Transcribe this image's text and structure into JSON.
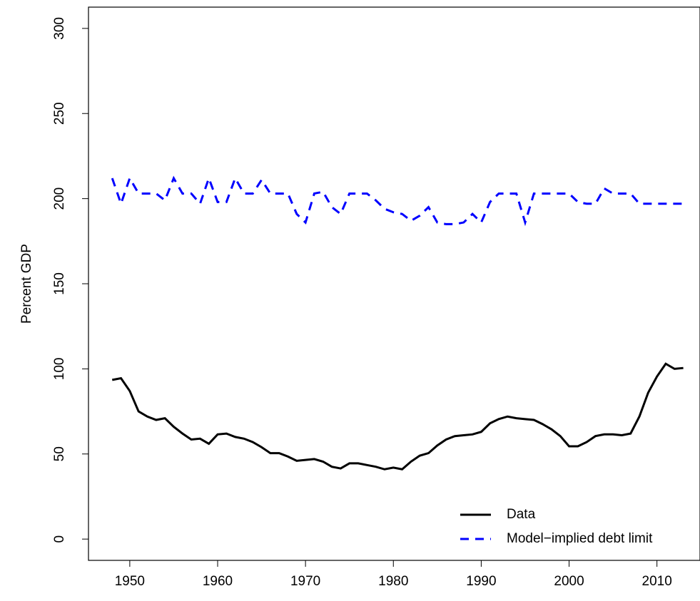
{
  "chart_data": {
    "type": "line",
    "y_label": "Percent GDP",
    "x": [
      1948,
      1949,
      1950,
      1951,
      1952,
      1953,
      1954,
      1955,
      1956,
      1957,
      1958,
      1959,
      1960,
      1961,
      1962,
      1963,
      1964,
      1965,
      1966,
      1967,
      1968,
      1969,
      1970,
      1971,
      1972,
      1973,
      1974,
      1975,
      1976,
      1977,
      1978,
      1979,
      1980,
      1981,
      1982,
      1983,
      1984,
      1985,
      1986,
      1987,
      1988,
      1989,
      1990,
      1991,
      1992,
      1993,
      1994,
      1995,
      1996,
      1997,
      1998,
      1999,
      2000,
      2001,
      2002,
      2003,
      2004,
      2005,
      2006,
      2007,
      2008,
      2009,
      2010,
      2011,
      2012,
      2013
    ],
    "series": [
      {
        "name": "Data",
        "color": "#000000",
        "dash": "solid",
        "values": [
          93.5,
          94.5,
          87,
          75,
          72,
          70,
          71,
          66,
          62,
          58.5,
          59,
          56,
          61.5,
          62,
          60,
          59,
          57,
          54,
          50.5,
          50.5,
          48.5,
          46,
          46.5,
          47,
          45.5,
          42.5,
          41.5,
          44.5,
          44.5,
          43.5,
          42.5,
          41,
          42,
          41,
          45.5,
          49,
          50.5,
          55,
          58.5,
          60.5,
          61,
          61.5,
          63,
          68,
          70.5,
          72,
          71,
          70.5,
          70,
          67.5,
          64.5,
          60.5,
          54.5,
          54.5,
          57,
          60.5,
          61.5,
          61.5,
          61,
          62,
          72,
          86,
          95.5,
          103,
          100,
          100.5
        ]
      },
      {
        "name": "Model−implied debt limit",
        "color": "#0000ff",
        "dash": "dashed",
        "values": [
          212,
          197,
          212,
          203,
          203,
          203,
          199,
          212,
          203,
          203,
          197,
          212,
          198,
          198,
          212,
          203,
          203,
          211,
          203,
          203,
          203,
          191,
          186,
          203,
          204,
          195,
          191,
          203,
          203,
          203,
          199,
          194,
          192,
          191,
          187,
          190,
          195,
          186,
          185,
          185,
          186,
          191,
          186,
          198,
          203,
          203,
          203,
          186,
          203,
          203,
          203,
          203,
          203,
          198,
          197,
          197,
          206,
          203,
          203,
          203,
          197,
          197,
          197,
          197,
          197,
          197
        ]
      }
    ],
    "xlim": [
      1945.3,
      2014.9
    ],
    "ylim": [
      -12.5,
      312.5
    ],
    "xticks": [
      1950,
      1960,
      1970,
      1980,
      1990,
      2000,
      2010
    ],
    "yticks": [
      0,
      50,
      100,
      150,
      200,
      250,
      300
    ],
    "legend_position": "bottom-right"
  }
}
